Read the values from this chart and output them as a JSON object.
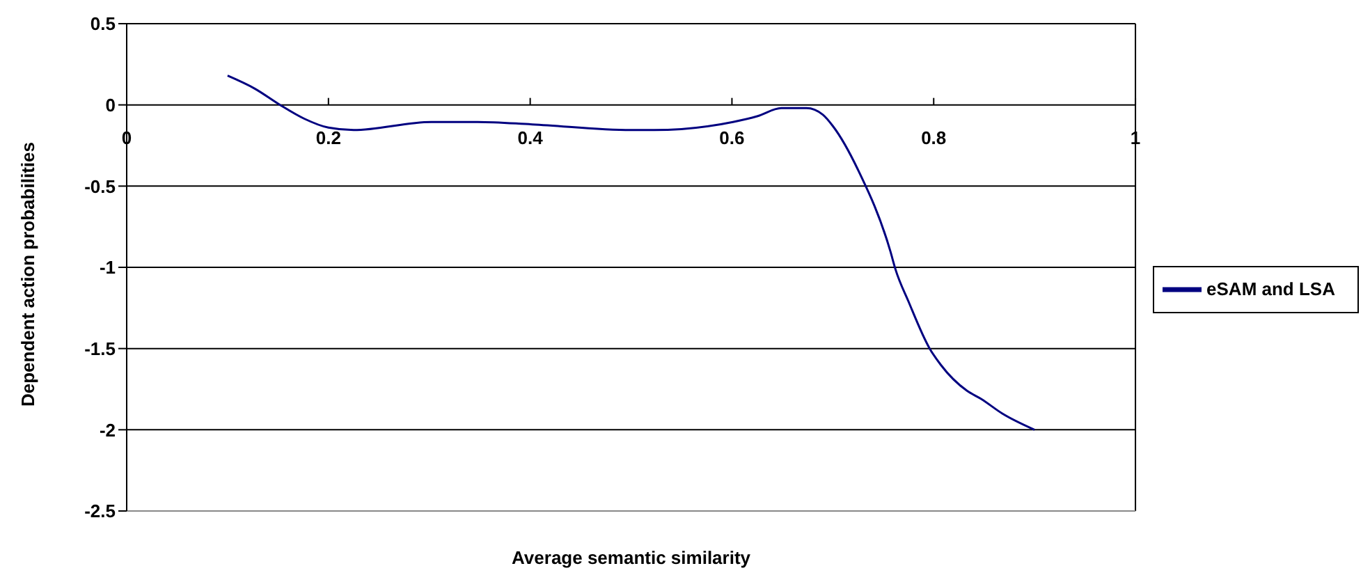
{
  "chart_data": {
    "type": "line",
    "xlabel": "Average semantic similarity",
    "ylabel": "Dependent action probabilities",
    "x": [
      0.1,
      0.127,
      0.152,
      0.176,
      0.2,
      0.225,
      0.302,
      0.348,
      0.402,
      0.5,
      0.523,
      0.601,
      0.625,
      0.649,
      0.674,
      0.69,
      0.7,
      0.725,
      0.757,
      0.762,
      0.775,
      0.796,
      0.807,
      0.833,
      0.847,
      0.868,
      0.9
    ],
    "series": [
      {
        "name": "eSAM and LSA",
        "color": "#000080",
        "values": [
          0.18,
          0.1,
          0,
          -0.085,
          -0.14,
          -0.155,
          -0.105,
          -0.105,
          -0.12,
          -0.155,
          -0.155,
          -0.105,
          -0.07,
          -0.02,
          -0.02,
          -0.06,
          -0.13,
          -0.4,
          -0.9,
          -1.01,
          -1.21,
          -1.5,
          -1.6,
          -1.76,
          -1.81,
          -1.9,
          -2
        ]
      }
    ],
    "xlim": [
      0,
      1
    ],
    "xticks": [
      0,
      0.2,
      0.4,
      0.6,
      0.8,
      1
    ],
    "ylim": [
      -2.5,
      0.5
    ],
    "yticks": [
      -2.5,
      -2,
      -1.5,
      -1,
      -0.5,
      0,
      0.5
    ],
    "grid": "y",
    "legend": "right",
    "marker": "none",
    "line_style": "solid"
  }
}
